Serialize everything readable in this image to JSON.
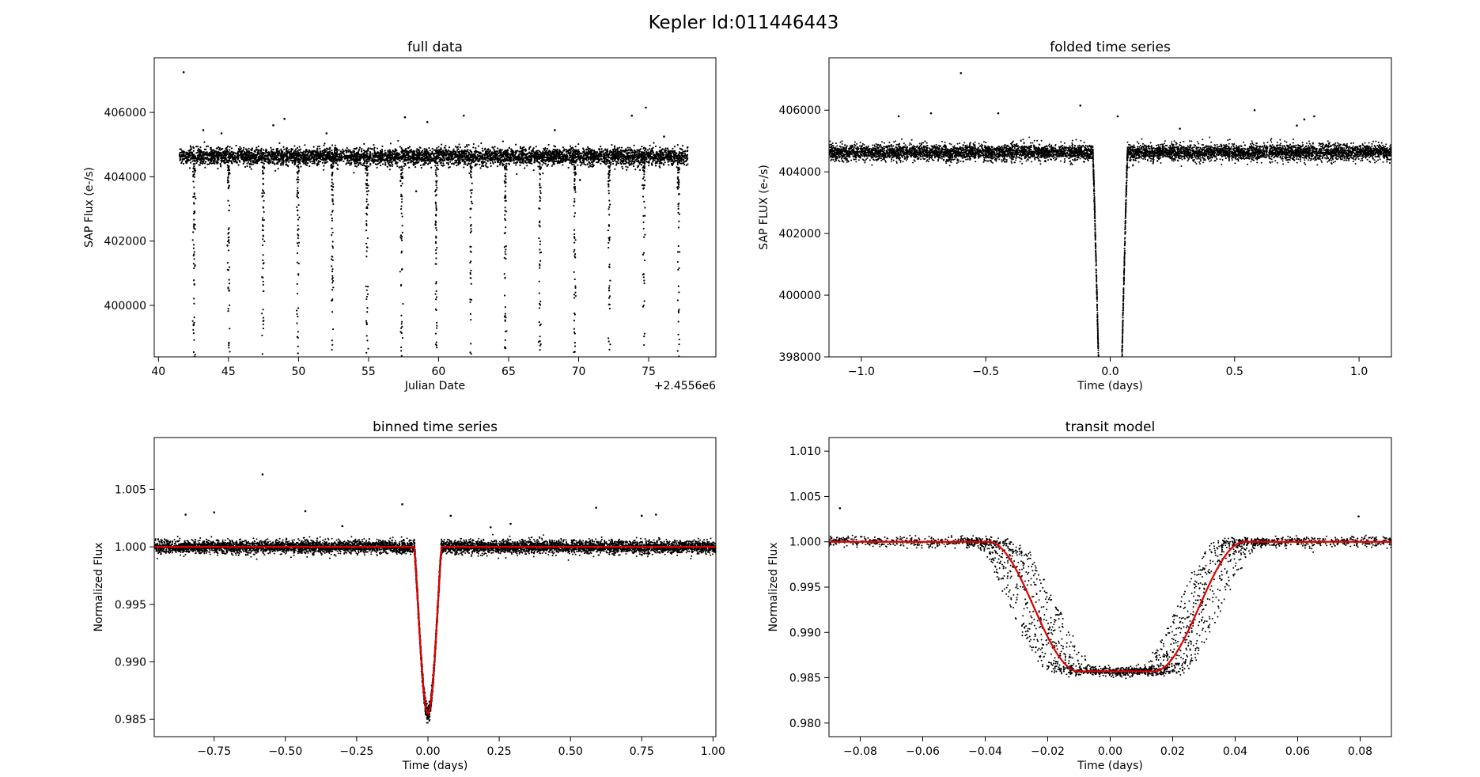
{
  "figure": {
    "suptitle": "Kepler Id:011446443"
  },
  "chart_data": [
    {
      "id": "full",
      "type": "scatter",
      "title": "full data",
      "xlabel": "Julian Date",
      "ylabel": "SAP Flux (e-/s)",
      "offset_text": "+2.4556e6",
      "xlim": [
        39.7,
        79.8
      ],
      "ylim": [
        398400,
        407700
      ],
      "xticks": [
        40,
        45,
        50,
        55,
        60,
        65,
        70,
        75
      ],
      "xticklabels": [
        "40",
        "45",
        "50",
        "55",
        "60",
        "65",
        "70",
        "75"
      ],
      "yticks": [
        400000,
        402000,
        404000,
        406000
      ],
      "yticklabels": [
        "400000",
        "402000",
        "404000",
        "406000"
      ],
      "x_offset": 2455600,
      "data_range": [
        41.5,
        77.8
      ],
      "baseline": 404630,
      "period": 2.4706,
      "first_transit": 42.54,
      "depth_flux": 389000,
      "outliers": [
        [
          41.8,
          407250
        ],
        [
          43.2,
          405450
        ],
        [
          44.5,
          405350
        ],
        [
          48.2,
          405600
        ],
        [
          49.0,
          405800
        ],
        [
          52.0,
          405350
        ],
        [
          57.6,
          405850
        ],
        [
          59.2,
          405700
        ],
        [
          61.8,
          405900
        ],
        [
          68.3,
          405450
        ],
        [
          73.8,
          405900
        ],
        [
          74.8,
          406150
        ],
        [
          76.1,
          405250
        ],
        [
          58.4,
          403550
        ],
        [
          70.1,
          403900
        ]
      ]
    },
    {
      "id": "folded",
      "type": "scatter",
      "title": "folded time series",
      "xlabel": "Time (days)",
      "ylabel": "SAP FLUX (e-/s)",
      "xlim": [
        -1.13,
        1.13
      ],
      "ylim": [
        398000,
        407700
      ],
      "xticks": [
        -1.0,
        -0.5,
        0.0,
        0.5,
        1.0
      ],
      "xticklabels": [
        "−1.0",
        "−0.5",
        "0.0",
        "0.5",
        "1.0"
      ],
      "yticks": [
        398000,
        400000,
        402000,
        404000,
        406000
      ],
      "yticklabels": [
        "398000",
        "400000",
        "402000",
        "404000",
        "406000"
      ],
      "baseline": 404630,
      "depth_flux": 388950,
      "outliers": [
        [
          -0.6,
          407200
        ],
        [
          -0.85,
          405800
        ],
        [
          -0.72,
          405900
        ],
        [
          -0.45,
          405900
        ],
        [
          -0.12,
          406150
        ],
        [
          0.03,
          405800
        ],
        [
          0.28,
          405400
        ],
        [
          0.58,
          406000
        ],
        [
          0.82,
          405800
        ],
        [
          0.78,
          405700
        ],
        [
          0.75,
          405500
        ]
      ]
    },
    {
      "id": "binned",
      "type": "scatter",
      "title": "binned time series",
      "xlabel": "Time (days)",
      "ylabel": "Normalized Flux",
      "xlim": [
        -0.96,
        1.01
      ],
      "ylim": [
        0.9835,
        1.0095
      ],
      "xticks": [
        -0.75,
        -0.5,
        -0.25,
        0.0,
        0.25,
        0.5,
        0.75,
        1.0
      ],
      "xticklabels": [
        "−0.75",
        "−0.50",
        "−0.25",
        "0.00",
        "0.25",
        "0.50",
        "0.75",
        "1.00"
      ],
      "yticks": [
        0.985,
        0.99,
        0.995,
        1.0,
        1.005
      ],
      "yticklabels": [
        "0.985",
        "0.990",
        "0.995",
        "1.000",
        "1.005"
      ],
      "baseline": 1.0,
      "depth": 0.9855,
      "outliers": [
        [
          -0.58,
          1.0063
        ],
        [
          -0.85,
          1.0028
        ],
        [
          -0.75,
          1.003
        ],
        [
          -0.43,
          1.0031
        ],
        [
          -0.09,
          1.0037
        ],
        [
          0.08,
          1.0027
        ],
        [
          0.29,
          1.002
        ],
        [
          0.59,
          1.0034
        ],
        [
          0.75,
          1.0027
        ],
        [
          0.8,
          1.0028
        ],
        [
          -0.3,
          1.0018
        ],
        [
          0.22,
          1.0017
        ]
      ]
    },
    {
      "id": "model",
      "type": "scatter",
      "title": "transit model",
      "xlabel": "Time (days)",
      "ylabel": "Normalized Flux",
      "xlim": [
        -0.09,
        0.09
      ],
      "ylim": [
        0.9785,
        1.0115
      ],
      "xticks": [
        -0.08,
        -0.06,
        -0.04,
        -0.02,
        0.0,
        0.02,
        0.04,
        0.06,
        0.08
      ],
      "xticklabels": [
        "−0.08",
        "−0.06",
        "−0.04",
        "−0.02",
        "0.00",
        "0.02",
        "0.04",
        "0.06",
        "0.08"
      ],
      "yticks": [
        0.98,
        0.985,
        0.99,
        0.995,
        1.0,
        1.005,
        1.01
      ],
      "yticklabels": [
        "0.980",
        "0.985",
        "0.990",
        "0.995",
        "1.000",
        "1.005",
        "1.010"
      ],
      "baseline": 1.0,
      "depth": 0.9857,
      "outliers": [
        [
          -0.0865,
          1.0037
        ],
        [
          0.0795,
          1.0028
        ]
      ]
    }
  ]
}
